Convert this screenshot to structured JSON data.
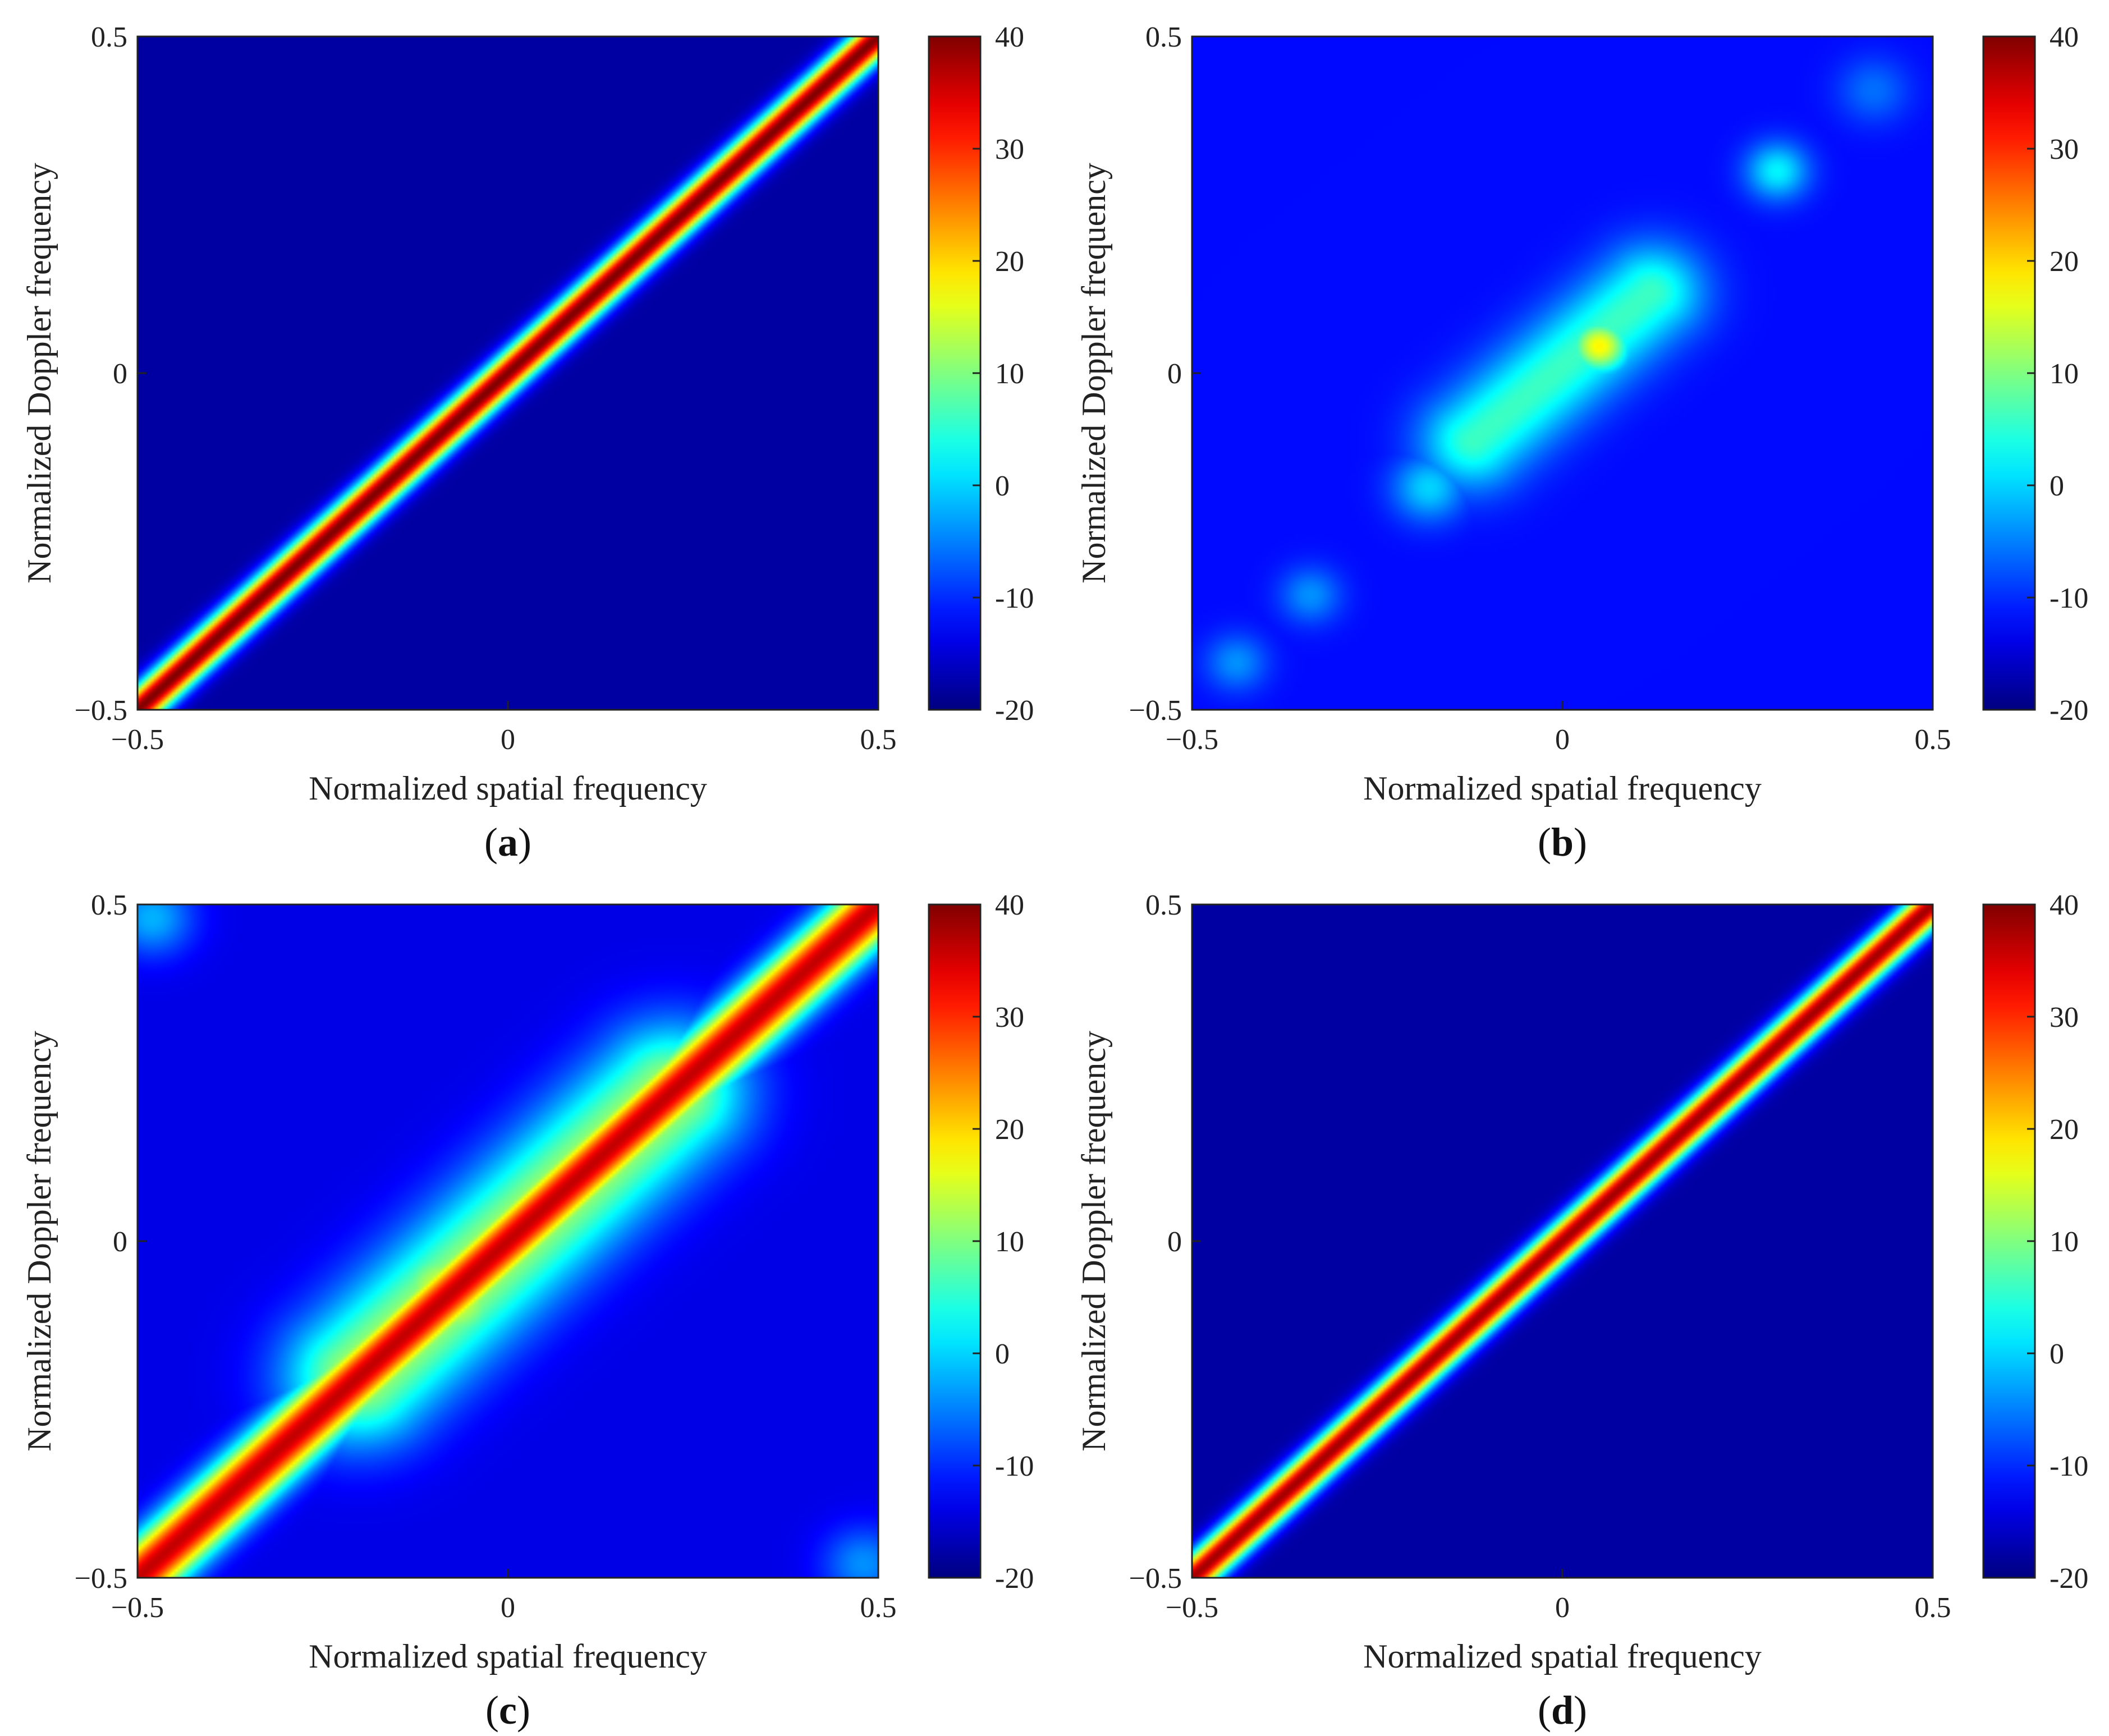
{
  "chart_data": [
    {
      "type": "heatmap",
      "panel": "a",
      "caption_open": "(",
      "caption_letter": "a",
      "caption_close": ")",
      "xlabel": "Normalized spatial frequency",
      "ylabel": "Normalized Doppler frequency",
      "xlim": [
        -0.5,
        0.5
      ],
      "ylim": [
        -0.5,
        0.5
      ],
      "x_ticks": [
        {
          "value": -0.5,
          "label": "−0.5"
        },
        {
          "value": 0,
          "label": "0"
        },
        {
          "value": 0.5,
          "label": "0.5"
        }
      ],
      "y_ticks": [
        {
          "value": -0.5,
          "label": "−0.5"
        },
        {
          "value": 0,
          "label": "0"
        },
        {
          "value": 0.5,
          "label": "0.5"
        }
      ],
      "colorbar": {
        "min": -20,
        "max": 40,
        "ticks": [
          "40",
          "30",
          "20",
          "10",
          "0",
          "-10",
          "-20"
        ]
      },
      "background_db": -18,
      "features": [
        {
          "kind": "ridge",
          "from": [
            -0.5,
            -0.5
          ],
          "to": [
            0.5,
            0.5
          ],
          "peak_db": 40,
          "width": 0.018
        }
      ]
    },
    {
      "type": "heatmap",
      "panel": "b",
      "caption_open": "(",
      "caption_letter": "b",
      "caption_close": ")",
      "xlabel": "Normalized spatial frequency",
      "ylabel": "Normalized Doppler frequency",
      "xlim": [
        -0.5,
        0.5
      ],
      "ylim": [
        -0.5,
        0.5
      ],
      "x_ticks": [
        {
          "value": -0.5,
          "label": "−0.5"
        },
        {
          "value": 0,
          "label": "0"
        },
        {
          "value": 0.5,
          "label": "0.5"
        }
      ],
      "y_ticks": [
        {
          "value": -0.5,
          "label": "−0.5"
        },
        {
          "value": 0,
          "label": "0"
        },
        {
          "value": 0.5,
          "label": "0.5"
        }
      ],
      "colorbar": {
        "min": -20,
        "max": 40,
        "ticks": [
          "40",
          "30",
          "20",
          "10",
          "0",
          "-10",
          "-20"
        ]
      },
      "background_db": -12,
      "features": [
        {
          "kind": "ridge",
          "from": [
            -0.12,
            -0.1
          ],
          "to": [
            0.12,
            0.12
          ],
          "peak_db": 6,
          "width": 0.05
        },
        {
          "kind": "blob",
          "center": [
            0.05,
            0.04
          ],
          "peak_db": 18,
          "sigma": 0.03
        },
        {
          "kind": "blob",
          "center": [
            -0.18,
            -0.17
          ],
          "peak_db": 0,
          "sigma": 0.035
        },
        {
          "kind": "blob",
          "center": [
            -0.34,
            -0.33
          ],
          "peak_db": -4,
          "sigma": 0.03
        },
        {
          "kind": "blob",
          "center": [
            -0.44,
            -0.43
          ],
          "peak_db": -4,
          "sigma": 0.03
        },
        {
          "kind": "blob",
          "center": [
            0.29,
            0.3
          ],
          "peak_db": 2,
          "sigma": 0.03
        },
        {
          "kind": "blob",
          "center": [
            0.42,
            0.42
          ],
          "peak_db": -6,
          "sigma": 0.035
        }
      ]
    },
    {
      "type": "heatmap",
      "panel": "c",
      "caption_open": "(",
      "caption_letter": "c",
      "caption_close": ")",
      "xlabel": "Normalized spatial frequency",
      "ylabel": "Normalized Doppler frequency",
      "xlim": [
        -0.5,
        0.5
      ],
      "ylim": [
        -0.5,
        0.5
      ],
      "x_ticks": [
        {
          "value": -0.5,
          "label": "−0.5"
        },
        {
          "value": 0,
          "label": "0"
        },
        {
          "value": 0.5,
          "label": "0.5"
        }
      ],
      "y_ticks": [
        {
          "value": -0.5,
          "label": "−0.5"
        },
        {
          "value": 0,
          "label": "0"
        },
        {
          "value": 0.5,
          "label": "0.5"
        }
      ],
      "colorbar": {
        "min": -20,
        "max": 40,
        "ticks": [
          "40",
          "30",
          "20",
          "10",
          "0",
          "-10",
          "-20"
        ]
      },
      "background_db": -14,
      "features": [
        {
          "kind": "ridge",
          "from": [
            -0.5,
            -0.5
          ],
          "to": [
            0.5,
            0.5
          ],
          "peak_db": 36,
          "width": 0.03
        },
        {
          "kind": "ridge",
          "from": [
            -0.2,
            -0.2
          ],
          "to": [
            0.22,
            0.22
          ],
          "peak_db": 14,
          "width": 0.07
        },
        {
          "kind": "blob",
          "center": [
            -0.08,
            -0.08
          ],
          "peak_db": 18,
          "sigma": 0.06
        },
        {
          "kind": "blob",
          "center": [
            -0.48,
            0.48
          ],
          "peak_db": -2,
          "sigma": 0.04
        },
        {
          "kind": "blob",
          "center": [
            0.48,
            -0.48
          ],
          "peak_db": -4,
          "sigma": 0.04
        }
      ]
    },
    {
      "type": "heatmap",
      "panel": "d",
      "caption_open": "(",
      "caption_letter": "d",
      "caption_close": ")",
      "xlabel": "Normalized spatial frequency",
      "ylabel": "Normalized Doppler frequency",
      "xlim": [
        -0.5,
        0.5
      ],
      "ylim": [
        -0.5,
        0.5
      ],
      "x_ticks": [
        {
          "value": -0.5,
          "label": "−0.5"
        },
        {
          "value": 0,
          "label": "0"
        },
        {
          "value": 0.5,
          "label": "0.5"
        }
      ],
      "y_ticks": [
        {
          "value": -0.5,
          "label": "−0.5"
        },
        {
          "value": 0,
          "label": "0"
        },
        {
          "value": 0.5,
          "label": "0.5"
        }
      ],
      "colorbar": {
        "min": -20,
        "max": 40,
        "ticks": [
          "40",
          "30",
          "20",
          "10",
          "0",
          "-10",
          "-20"
        ]
      },
      "background_db": -18,
      "features": [
        {
          "kind": "ridge",
          "from": [
            -0.5,
            -0.5
          ],
          "to": [
            0.5,
            0.5
          ],
          "peak_db": 38,
          "width": 0.018
        }
      ]
    }
  ]
}
